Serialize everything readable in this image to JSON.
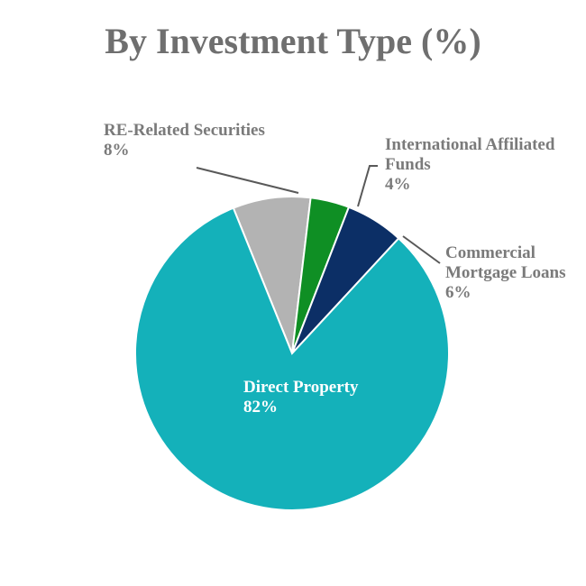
{
  "chart_data": {
    "type": "pie",
    "title": "By Investment Type (%)",
    "slices": [
      {
        "label_lines": [
          "RE-Related Securities"
        ],
        "name": "RE-Related Securities",
        "value": 8,
        "value_label": "8%",
        "color": "#b3b3b3"
      },
      {
        "label_lines": [
          "International Affiliated",
          "Funds"
        ],
        "name": "International Affiliated Funds",
        "value": 4,
        "value_label": "4%",
        "color": "#0f8f24"
      },
      {
        "label_lines": [
          "Commercial",
          "Mortgage Loans"
        ],
        "name": "Commercial Mortgage Loans",
        "value": 6,
        "value_label": "6%",
        "color": "#0c2f66"
      },
      {
        "label_lines": [
          "Direct Property"
        ],
        "name": "Direct Property",
        "value": 82,
        "value_label": "82%",
        "color": "#14b1ba"
      }
    ]
  }
}
